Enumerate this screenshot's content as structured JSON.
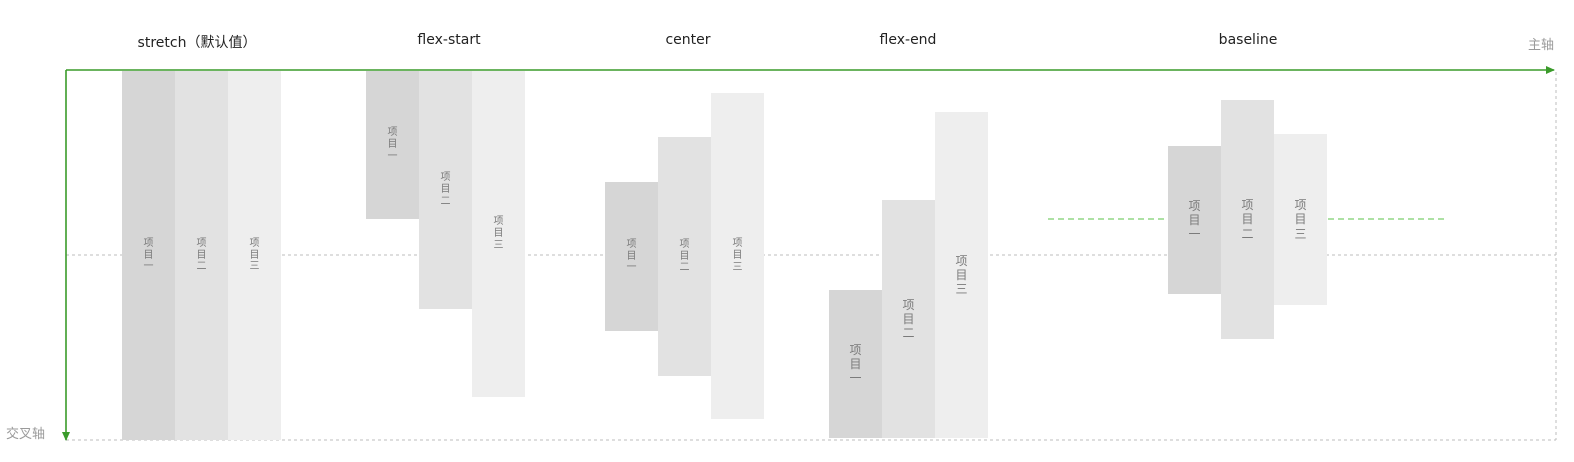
{
  "sections": [
    {
      "key": "stretch",
      "title": "stretch（默认值）"
    },
    {
      "key": "flex-start",
      "title": "flex-start"
    },
    {
      "key": "center",
      "title": "center"
    },
    {
      "key": "flex-end",
      "title": "flex-end"
    },
    {
      "key": "baseline",
      "title": "baseline"
    }
  ],
  "axes": {
    "main_axis_label": "主轴",
    "cross_axis_label": "交叉轴",
    "axis_color": "#3a9b2a",
    "baseline_guide_color": "#7ccf6e",
    "midline_color": "#bdbdbd"
  },
  "items": {
    "item1": [
      "项",
      "目",
      "一"
    ],
    "item2": [
      "项",
      "目",
      "二"
    ],
    "item3": [
      "项",
      "目",
      "三"
    ]
  },
  "colors": {
    "item1": "#d6d6d6",
    "item2": "#e2e2e2",
    "item3": "#eeeeee",
    "item_text": "#7a7a7a"
  }
}
